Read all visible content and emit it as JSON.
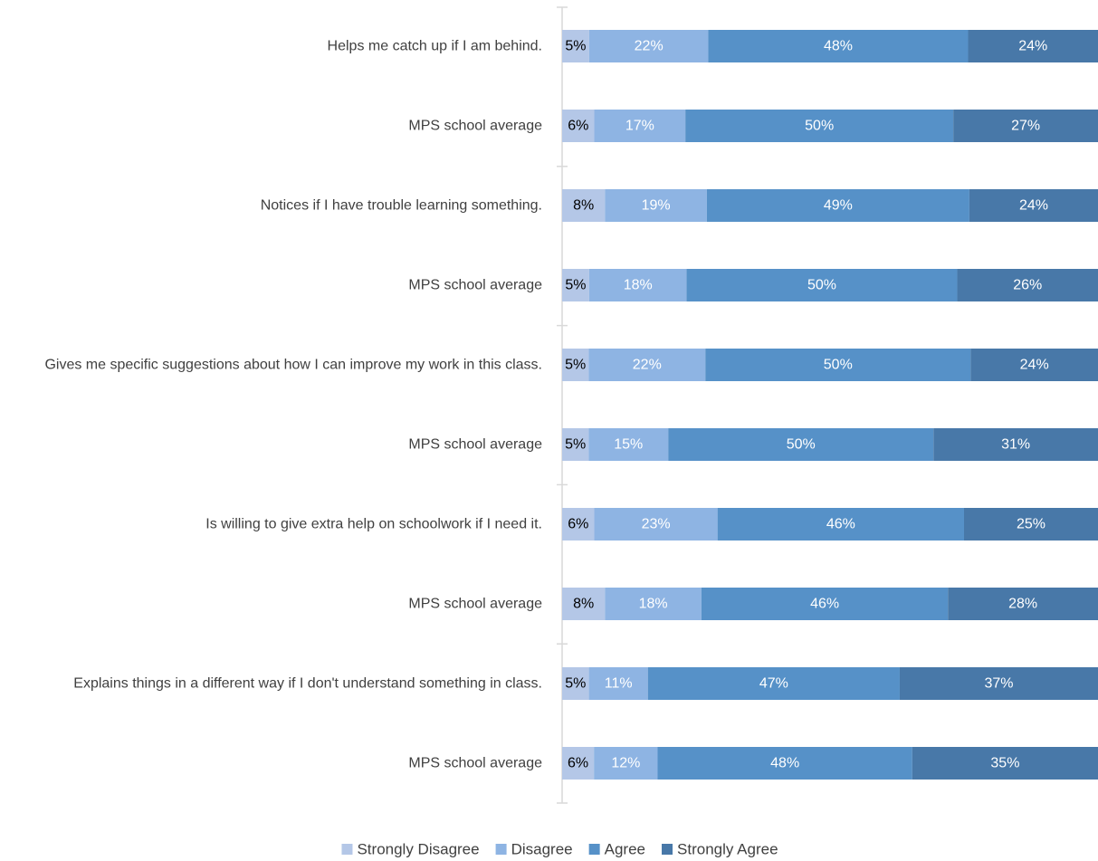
{
  "chart_data": {
    "type": "bar",
    "orientation": "horizontal",
    "stacked": true,
    "normalized": true,
    "categories": [
      "Helps me catch up if I am behind.",
      "MPS school average",
      "Notices if I have trouble learning something.",
      "MPS school average",
      "Gives me specific suggestions about how I can improve my work in this class.",
      "MPS school average",
      "Is willing to give extra help on schoolwork if I need it.",
      "MPS school average",
      "Explains things in a different way if I don't understand something in class.",
      "MPS school average"
    ],
    "series": [
      {
        "name": "Strongly Disagree",
        "color": "#b4c7e7",
        "label_color": "#000000",
        "values": [
          5,
          6,
          8,
          5,
          5,
          5,
          6,
          8,
          5,
          6
        ]
      },
      {
        "name": "Disagree",
        "color": "#8eb4e3",
        "label_color": "#ffffff",
        "values": [
          22,
          17,
          19,
          18,
          22,
          15,
          23,
          18,
          11,
          12
        ]
      },
      {
        "name": "Agree",
        "color": "#5691c8",
        "label_color": "#ffffff",
        "values": [
          48,
          50,
          49,
          50,
          50,
          50,
          46,
          46,
          47,
          48
        ]
      },
      {
        "name": "Strongly Agree",
        "color": "#4878a8",
        "label_color": "#ffffff",
        "values": [
          24,
          27,
          24,
          26,
          24,
          31,
          25,
          28,
          37,
          35
        ]
      }
    ],
    "value_suffix": "%",
    "legend_position": "bottom",
    "grid": false
  }
}
